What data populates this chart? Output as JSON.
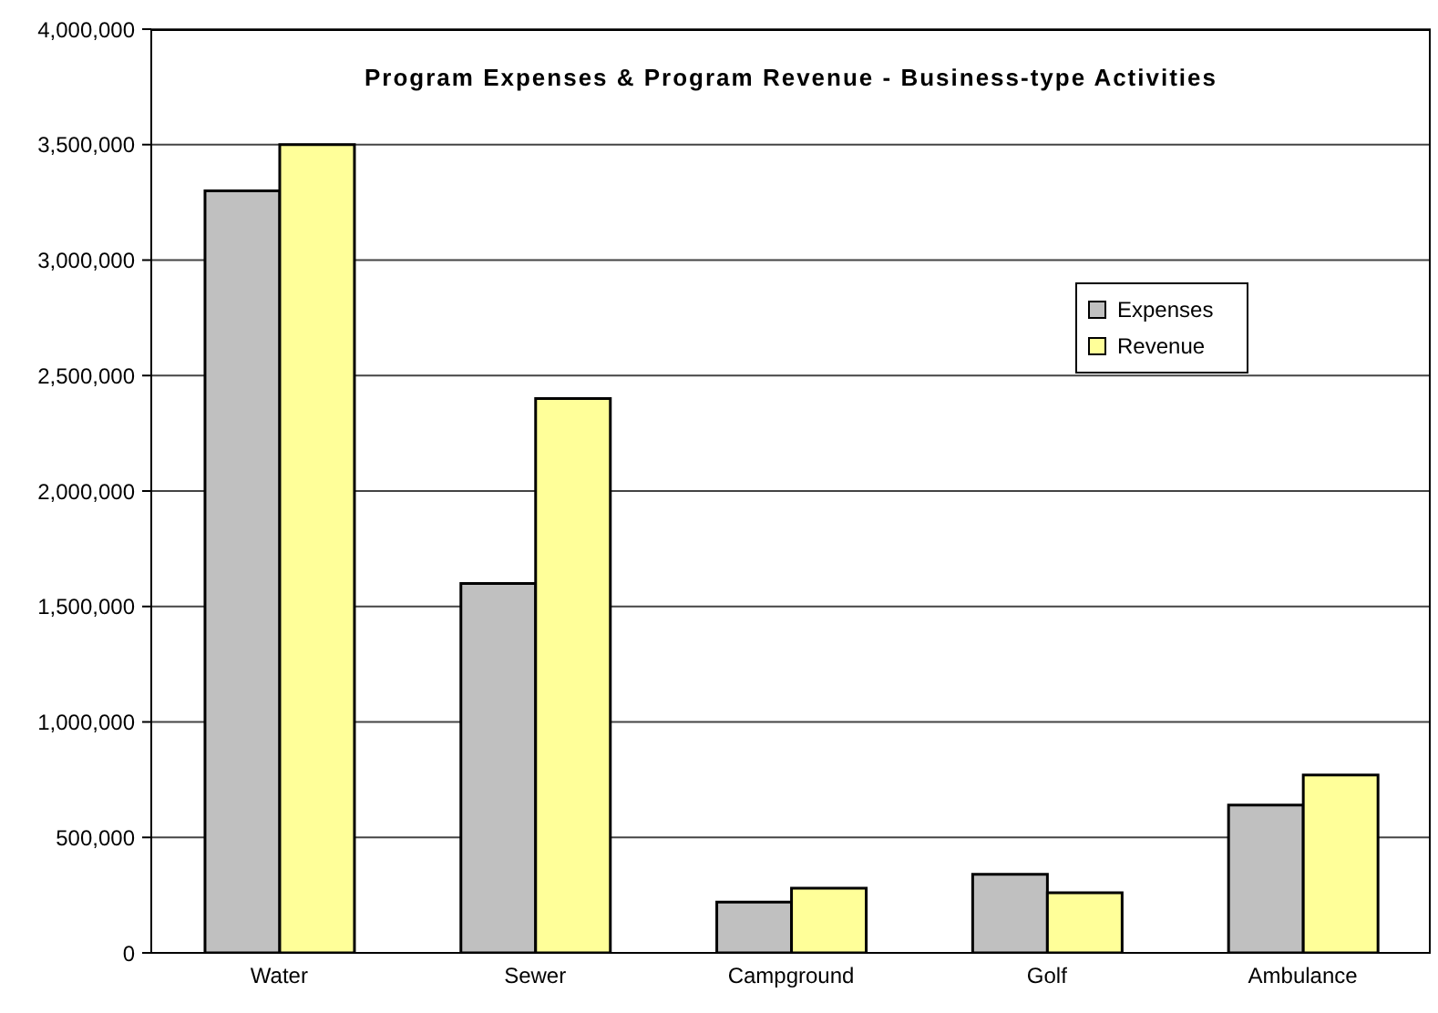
{
  "chart_data": {
    "type": "bar",
    "title": "Program Expenses & Program Revenue - Business-type Activities",
    "categories": [
      "Water",
      "Sewer",
      "Campground",
      "Golf",
      "Ambulance"
    ],
    "series": [
      {
        "name": "Expenses",
        "color": "#c0c0c0",
        "values": [
          3300000,
          1600000,
          220000,
          340000,
          640000
        ]
      },
      {
        "name": "Revenue",
        "color": "#ffff99",
        "values": [
          3500000,
          2400000,
          280000,
          260000,
          770000
        ]
      }
    ],
    "ylim": [
      0,
      4000000
    ],
    "yticks": [
      0,
      {
        "value": 500000,
        "label": "500,000"
      },
      {
        "value": 1000000,
        "label": "1,000,000"
      },
      {
        "value": 1500000,
        "label": "1,500,000"
      },
      {
        "value": 2000000,
        "label": "2,000,000"
      },
      {
        "value": 2500000,
        "label": "2,500,000"
      },
      {
        "value": 3000000,
        "label": "3,000,000"
      },
      {
        "value": 3500000,
        "label": "3,500,000"
      },
      {
        "value": 4000000,
        "label": "4,000,000"
      }
    ],
    "grid": "y",
    "legend": "right"
  }
}
